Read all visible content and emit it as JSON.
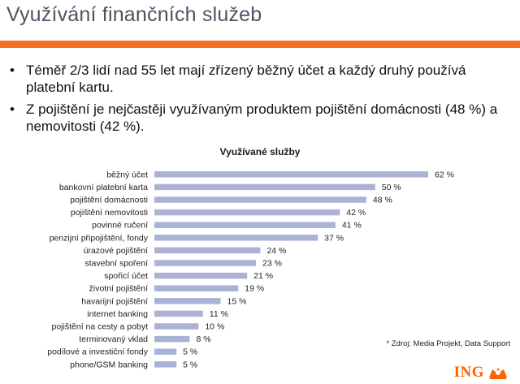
{
  "header": {
    "title": "Využívání finančních služeb"
  },
  "bullets": [
    "Téměř 2/3 lidí nad 55 let mají zřízený běžný účet a každý druhý používá platební kartu.",
    "Z pojištění je nejčastěji využívaným produktem pojištění domácnosti (48 %) a nemovitosti (42 %)."
  ],
  "colors": {
    "accent": "#f36f22",
    "bar": "#aab3d6",
    "brand": "#ff6200"
  },
  "chart_data": {
    "type": "bar",
    "orientation": "horizontal",
    "title": "Využívané služby",
    "categories": [
      "běžný účet",
      "bankovní platební karta",
      "pojištění domácnosti",
      "pojištění nemovitosti",
      "povinné ručení",
      "penzijní připojištění, fondy",
      "úrazové pojištění",
      "stavební spoření",
      "spořicí účet",
      "životní pojištění",
      "havarijní pojištění",
      "internet banking",
      "pojištění na cesty a pobyt",
      "terminovaný vklad",
      "podílové a investiční fondy",
      "phone/GSM banking"
    ],
    "values": [
      62,
      50,
      48,
      42,
      41,
      37,
      24,
      23,
      21,
      19,
      15,
      11,
      10,
      8,
      5,
      5
    ],
    "value_labels": [
      "62 %",
      "50 %",
      "48 %",
      "42 %",
      "41 %",
      "37 %",
      "24 %",
      "23 %",
      "21 %",
      "19 %",
      "15 %",
      "11 %",
      "10 %",
      "8 %",
      "5 %",
      "5 %"
    ],
    "xlim": [
      0,
      62
    ],
    "grid": false,
    "legend": "none"
  },
  "source": "* Zdroj: Media Projekt, Data Support",
  "logo": {
    "text": "ING",
    "icon": "lion-icon"
  }
}
